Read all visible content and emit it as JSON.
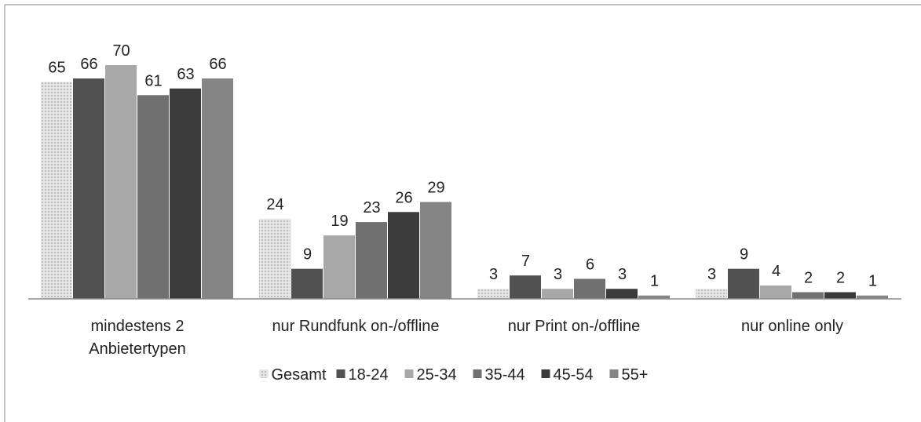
{
  "chart_data": {
    "type": "bar",
    "categories": [
      "mindestens 2 Anbietertypen",
      "nur Rundfunk on-/offline",
      "nur Print on-/offline",
      "nur online only"
    ],
    "series": [
      {
        "name": "Gesamt",
        "color": "#d4d4d4",
        "pattern": "dots",
        "values": [
          65,
          24,
          3,
          3
        ]
      },
      {
        "name": "18-24",
        "color": "#515151",
        "values": [
          66,
          9,
          7,
          9
        ]
      },
      {
        "name": "25-34",
        "color": "#a8a8a8",
        "values": [
          70,
          19,
          3,
          4
        ]
      },
      {
        "name": "35-44",
        "color": "#707070",
        "values": [
          61,
          23,
          6,
          2
        ]
      },
      {
        "name": "45-54",
        "color": "#3b3b3b",
        "values": [
          63,
          26,
          3,
          2
        ]
      },
      {
        "name": "55+",
        "color": "#858585",
        "values": [
          66,
          29,
          1,
          1
        ]
      }
    ],
    "legend": "bottom"
  }
}
